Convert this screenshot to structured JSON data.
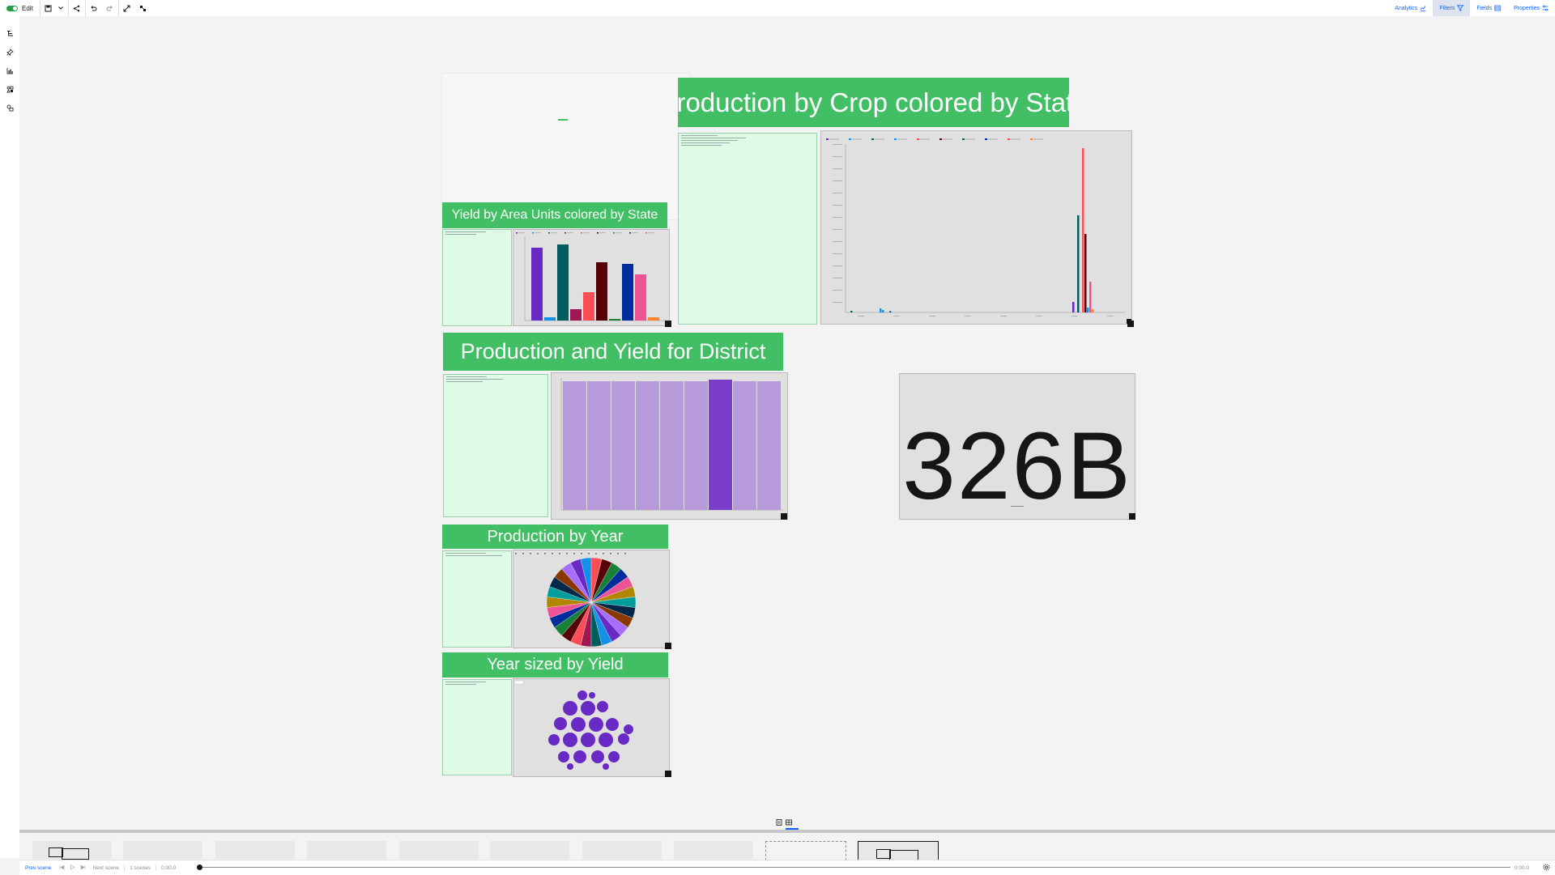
{
  "toolbar": {
    "edit_label": "Edit",
    "tabs": [
      {
        "label": "Analytics",
        "icon": "analytics-icon",
        "active": false
      },
      {
        "label": "Filters",
        "icon": "filter-icon",
        "active": true
      },
      {
        "label": "Fields",
        "icon": "fields-icon",
        "active": false
      },
      {
        "label": "Properties",
        "icon": "properties-icon",
        "active": false
      }
    ]
  },
  "rail": {
    "icons": [
      "navigation-icon",
      "pin-icon",
      "visualizations-icon",
      "widgets-icon",
      "assets-icon"
    ]
  },
  "panels": {
    "crop_title": "Production by Crop colored by State",
    "yield_area_title": "Yield by Area Units colored by State",
    "district_title": "Production and Yield for District",
    "year_title": "Production by Year",
    "year_size_title": "Year sized by Yield",
    "kpi_value": "326B"
  },
  "colors": {
    "title_green": "#42be65",
    "filter_green": "#defbe6",
    "purple": "#6929c4",
    "teal": "#005d5d",
    "red": "#fa4d56",
    "dark_red": "#570408",
    "navy": "#002d9c",
    "pink": "#ee5396",
    "orange": "#ff832b",
    "blue": "#1192e8"
  },
  "playback": {
    "prev_scene": "Prev scene",
    "next_scene": "Next scene",
    "scene_count": "1 scenes",
    "time_start": "0:00.0",
    "time_end": "0:00.0"
  }
}
